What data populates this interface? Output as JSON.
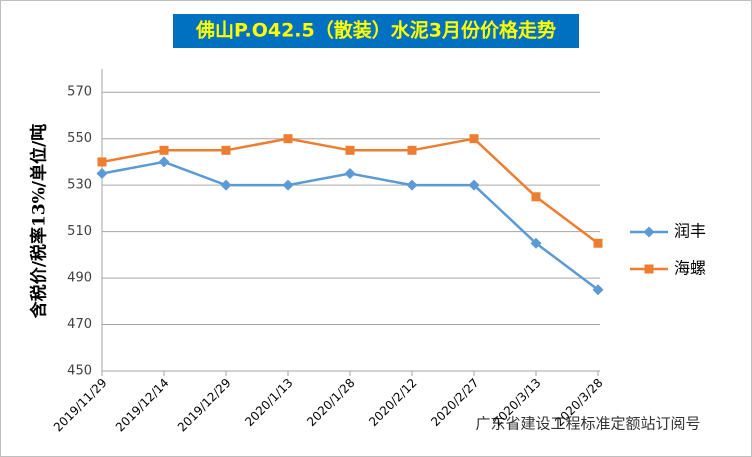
{
  "chart_data": {
    "type": "line",
    "title": "佛山P.O42.5（散装）水泥3月份价格走势",
    "y_label": "含税价/税率13%/单位/吨",
    "categories": [
      "2019/11/29",
      "2019/12/14",
      "2019/12/29",
      "2020/1/13",
      "2020/1/28",
      "2020/2/12",
      "2020/2/27",
      "2020/3/13",
      "2020/3/28"
    ],
    "series": [
      {
        "name": "润丰",
        "color": "#5b9bd5",
        "marker": "diamond",
        "values": [
          535,
          540,
          530,
          530,
          535,
          530,
          530,
          505,
          485
        ]
      },
      {
        "name": "海螺",
        "color": "#ed7d31",
        "marker": "square",
        "values": [
          540,
          545,
          545,
          550,
          545,
          545,
          550,
          525,
          505
        ]
      }
    ],
    "ylim": [
      450,
      580
    ],
    "yticks": [
      450,
      470,
      490,
      510,
      530,
      550,
      570
    ],
    "grid": true,
    "legend": "right",
    "watermark": "广东省建设工程标准定额站订阅号"
  }
}
